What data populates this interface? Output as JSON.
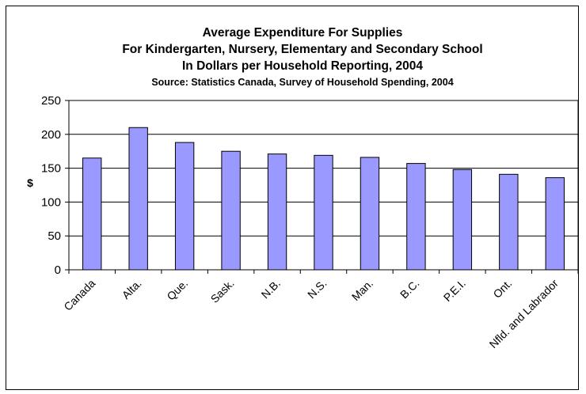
{
  "chart_data": {
    "type": "bar",
    "title_lines": [
      "Average Expenditure For Supplies",
      "For Kindergarten, Nursery, Elementary and Secondary School",
      "In Dollars per Household Reporting, 2004"
    ],
    "subtitle": "Source:  Statistics Canada, Survey of Household Spending, 2004",
    "xlabel": "",
    "ylabel": "$",
    "ylim": [
      0,
      250
    ],
    "yticks": [
      0,
      50,
      100,
      150,
      200,
      250
    ],
    "grid": true,
    "legend": "none",
    "bar_color": "#9999ff",
    "categories": [
      "Canada",
      "Alta.",
      "Que.",
      "Sask.",
      "N.B.",
      "N.S.",
      "Man.",
      "B.C.",
      "P.E.I.",
      "Ont.",
      "Nfld. and Labrador"
    ],
    "values": [
      165,
      210,
      188,
      175,
      171,
      169,
      166,
      157,
      148,
      141,
      136
    ]
  }
}
